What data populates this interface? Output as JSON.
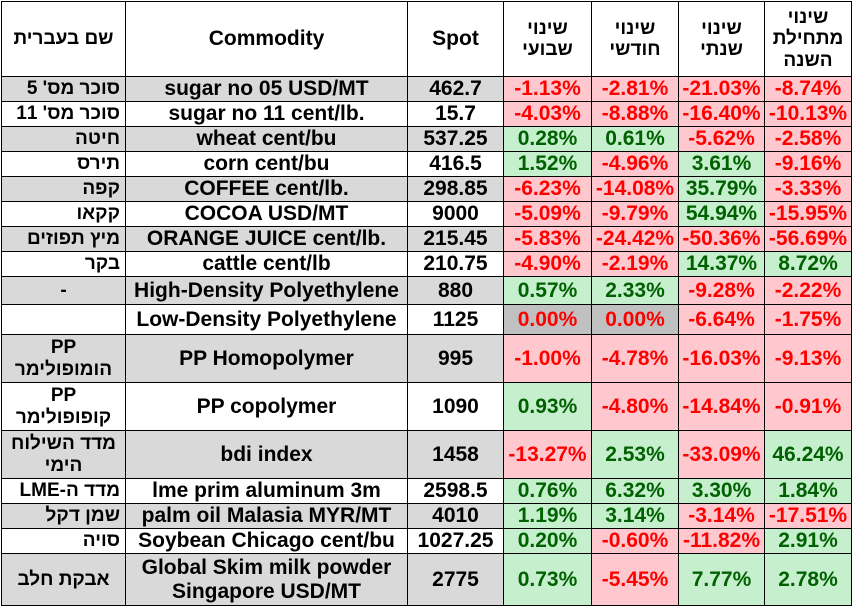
{
  "colors": {
    "row_shade": "#d9d9d9",
    "positive_bg": "#c6efce",
    "positive_text": "#006100",
    "negative_bg": "#ffc7ce",
    "negative_text": "#ff0000",
    "zero_bg": "#c0c0c0",
    "zero_text": "#ff0000",
    "grid": "#000000"
  },
  "chart_data": {
    "type": "table",
    "columns": [
      "שם בעברית",
      "Commodity",
      "Spot",
      "שינוי שבועי",
      "שינוי חודשי",
      "שינוי שנתי",
      "שינוי מתחילת השנה"
    ],
    "rows": [
      [
        "סוכר מס' 5",
        "sugar no 05 USD/MT",
        "462.7",
        "-1.13%",
        "-2.81%",
        "-21.03%",
        "-8.74%"
      ],
      [
        "סוכר מס' 11",
        "sugar no 11 cent/lb.",
        "15.7",
        "-4.03%",
        "-8.88%",
        "-16.40%",
        "-10.13%"
      ],
      [
        "חיטה",
        "wheat cent/bu",
        "537.25",
        "0.28%",
        "0.61%",
        "-5.62%",
        "-2.58%"
      ],
      [
        "תירס",
        "corn cent/bu",
        "416.5",
        "1.52%",
        "-4.96%",
        "3.61%",
        "-9.16%"
      ],
      [
        "קפה",
        "COFFEE cent/lb.",
        "298.85",
        "-6.23%",
        "-14.08%",
        "35.79%",
        "-3.33%"
      ],
      [
        "קקאו",
        "COCOA USD/MT",
        "9000",
        "-5.09%",
        "-9.79%",
        "54.94%",
        "-15.95%"
      ],
      [
        "מיץ תפוזים",
        "ORANGE JUICE cent/lb.",
        "215.45",
        "-5.83%",
        "-24.42%",
        "-50.36%",
        "-56.69%"
      ],
      [
        "בקר",
        "cattle cent/lb",
        "210.75",
        "-4.90%",
        "-2.19%",
        "14.37%",
        "8.72%"
      ],
      [
        "-",
        "High-Density Polyethylene",
        "880",
        "0.57%",
        "2.33%",
        "-9.28%",
        "-2.22%"
      ],
      [
        "",
        "Low-Density Polyethylene",
        "1125",
        "0.00%",
        "0.00%",
        "-6.64%",
        "-1.75%"
      ],
      [
        "PP הומופולימר",
        "PP Homopolymer",
        "995",
        "-1.00%",
        "-4.78%",
        "-16.03%",
        "-9.13%"
      ],
      [
        "PP קופופולימר",
        "PP copolymer",
        "1090",
        "0.93%",
        "-4.80%",
        "-14.84%",
        "-0.91%"
      ],
      [
        "מדד השילוח הימי",
        "bdi index",
        "1458",
        "-13.27%",
        "2.53%",
        "-33.09%",
        "46.24%"
      ],
      [
        "מדד ה-LME",
        "lme prim aluminum 3m",
        "2598.5",
        "0.76%",
        "6.32%",
        "3.30%",
        "1.84%"
      ],
      [
        "שמן דקל",
        "palm oil Malasia MYR/MT",
        "4010",
        "1.19%",
        "3.14%",
        "-3.14%",
        "-17.51%"
      ],
      [
        "סויה",
        "Soybean Chicago cent/bu",
        "1027.25",
        "0.20%",
        "-0.60%",
        "-11.82%",
        "2.91%"
      ],
      [
        "אבקת חלב",
        "Global Skim milk powder Singapore USD/MT",
        "2775",
        "0.73%",
        "-5.45%",
        "7.77%",
        "2.78%"
      ]
    ]
  }
}
